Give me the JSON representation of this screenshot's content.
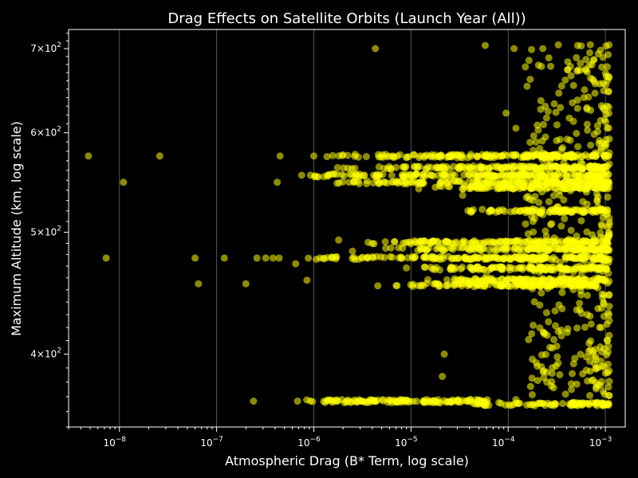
{
  "chart_data": {
    "type": "scatter",
    "title": "Drag Effects on Satellite Orbits (Launch Year (All))",
    "xlabel": "Atmospheric Drag (B* Term, log scale)",
    "ylabel": "Maximum Altitude (km, log scale)",
    "x_scale": "log",
    "y_scale": "log",
    "xlim": [
      3e-09,
      0.0016
    ],
    "ylim": [
      350,
      725
    ],
    "grid": "vertical major lines only",
    "x_ticks": [
      {
        "value": 1e-08,
        "base": "10",
        "exp": "−8"
      },
      {
        "value": 1e-07,
        "base": "10",
        "exp": "−7"
      },
      {
        "value": 1e-06,
        "base": "10",
        "exp": "−6"
      },
      {
        "value": 1e-05,
        "base": "10",
        "exp": "−5"
      },
      {
        "value": 0.0001,
        "base": "10",
        "exp": "−4"
      },
      {
        "value": 0.001,
        "base": "10",
        "exp": "−3"
      }
    ],
    "y_ticks": [
      {
        "value": 400,
        "mant": "4",
        "base": "10",
        "exp": "2"
      },
      {
        "value": 500,
        "mant": "5",
        "base": "10",
        "exp": "2"
      },
      {
        "value": 600,
        "mant": "6",
        "base": "10",
        "exp": "2"
      },
      {
        "value": 700,
        "mant": "7",
        "base": "10",
        "exp": "2"
      }
    ],
    "point_color": "#ffff00",
    "points": [
      [
        4.8e-09,
        575
      ],
      [
        7.3e-09,
        477
      ],
      [
        1.1e-08,
        548
      ],
      [
        2.6e-08,
        575
      ],
      [
        6e-08,
        477
      ],
      [
        6.5e-08,
        455
      ],
      [
        1.2e-07,
        477
      ],
      [
        2e-07,
        455
      ],
      [
        2.4e-07,
        367
      ],
      [
        2.6e-07,
        477
      ],
      [
        3.2e-07,
        477
      ],
      [
        3.8e-07,
        477
      ],
      [
        4.2e-07,
        548
      ],
      [
        4.5e-07,
        575
      ],
      [
        4.4e-07,
        477
      ],
      [
        6.5e-07,
        472
      ],
      [
        6.8e-07,
        367
      ],
      [
        8.5e-07,
        458
      ],
      [
        1e-06,
        575
      ],
      [
        4.3e-06,
        700
      ],
      [
        2.2e-05,
        400
      ],
      [
        2.1e-05,
        384
      ],
      [
        3.4e-05,
        535
      ],
      [
        5.8e-05,
        704
      ],
      [
        0.000115,
        700
      ],
      [
        0.00012,
        605
      ],
      [
        9.5e-05,
        622
      ],
      [
        0.00017,
        377
      ],
      [
        0.00012,
        368
      ],
      [
        0.00035,
        418
      ],
      [
        0.00025,
        387
      ],
      [
        0.00041,
        419
      ],
      [
        0.00032,
        398
      ],
      [
        0.00047,
        393
      ],
      [
        0.0007,
        705
      ],
      [
        0.0006,
        640
      ],
      [
        0.00065,
        430
      ],
      [
        0.00075,
        402
      ],
      [
        0.0008,
        390
      ],
      [
        0.0009,
        395
      ],
      [
        0.00105,
        410
      ],
      [
        0.00098,
        615
      ],
      [
        5e-05,
        487
      ],
      [
        6e-05,
        462
      ],
      [
        0.00028,
        508
      ],
      [
        0.00018,
        510
      ],
      [
        0.00025,
        380
      ],
      [
        1.5e-05,
        367
      ],
      [
        2.5e-06,
        483
      ],
      [
        1.8e-06,
        493
      ]
    ],
    "bands": [
      {
        "y": 575,
        "x_from": 9e-07,
        "x_to": 0.0011
      },
      {
        "y": 563,
        "x_from": 1.5e-06,
        "x_to": 0.0011
      },
      {
        "y": 555,
        "x_from": 6e-07,
        "x_to": 0.0011
      },
      {
        "y": 548,
        "x_from": 1e-06,
        "x_to": 0.0011
      },
      {
        "y": 543,
        "x_from": 1e-05,
        "x_to": 0.0011
      },
      {
        "y": 520,
        "x_from": 3e-05,
        "x_to": 0.0011
      },
      {
        "y": 491,
        "x_from": 3.5e-06,
        "x_to": 0.0011
      },
      {
        "y": 485,
        "x_from": 4e-06,
        "x_to": 0.0011
      },
      {
        "y": 477,
        "x_from": 6e-07,
        "x_to": 0.0011
      },
      {
        "y": 468,
        "x_from": 8e-06,
        "x_to": 0.0011
      },
      {
        "y": 458,
        "x_from": 1.3e-05,
        "x_to": 0.0011
      },
      {
        "y": 454,
        "x_from": 4e-06,
        "x_to": 0.0008
      },
      {
        "y": 367,
        "x_from": 6.5e-07,
        "x_to": 6.5e-05
      },
      {
        "y": 365,
        "x_from": 4e-05,
        "x_to": 0.0011
      }
    ],
    "cluster": {
      "x_from": 0.00015,
      "x_to": 0.0011,
      "y_from": 370,
      "y_to": 705
    }
  }
}
